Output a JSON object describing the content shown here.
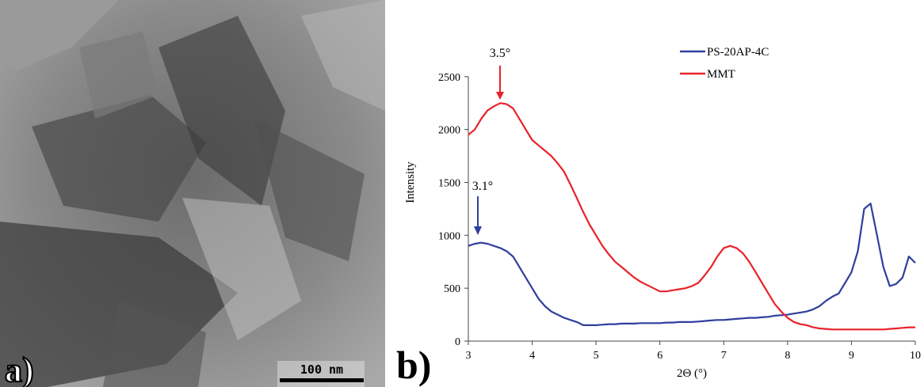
{
  "image_panel": {
    "label": "a)",
    "scale_bar": "100 nm"
  },
  "chart_data": {
    "type": "line",
    "panel_label": "b)",
    "x_label": "2Θ (°)",
    "y_label": "Intensity",
    "annotations": [
      "3.5°",
      "3.1°"
    ],
    "x": [
      3.0,
      3.1,
      3.2,
      3.3,
      3.4,
      3.5,
      3.6,
      3.7,
      3.8,
      3.9,
      4.0,
      4.1,
      4.2,
      4.3,
      4.4,
      4.5,
      4.6,
      4.7,
      4.8,
      4.9,
      5.0,
      5.1,
      5.2,
      5.3,
      5.4,
      5.5,
      5.6,
      5.7,
      5.8,
      5.9,
      6.0,
      6.1,
      6.2,
      6.3,
      6.4,
      6.5,
      6.6,
      6.7,
      6.8,
      6.9,
      7.0,
      7.1,
      7.2,
      7.3,
      7.4,
      7.5,
      7.6,
      7.7,
      7.8,
      7.9,
      8.0,
      8.1,
      8.2,
      8.3,
      8.4,
      8.5,
      8.6,
      8.7,
      8.8,
      8.9,
      9.0,
      9.1,
      9.2,
      9.3,
      9.4,
      9.5,
      9.6,
      9.7,
      9.8,
      9.9,
      10.0
    ],
    "series": [
      {
        "name": "PS-20AP-4C",
        "color": "#2e3f9e",
        "values": [
          900,
          920,
          930,
          920,
          900,
          880,
          850,
          800,
          700,
          600,
          500,
          400,
          330,
          280,
          250,
          220,
          200,
          180,
          150,
          150,
          150,
          155,
          160,
          160,
          165,
          165,
          165,
          170,
          170,
          170,
          170,
          175,
          175,
          180,
          180,
          180,
          185,
          190,
          195,
          200,
          200,
          205,
          210,
          215,
          220,
          220,
          225,
          230,
          240,
          245,
          250,
          260,
          270,
          280,
          300,
          330,
          380,
          420,
          450,
          550,
          650,
          850,
          1250,
          1300,
          1000,
          700,
          520,
          540,
          600,
          800,
          740
        ]
      },
      {
        "name": "MMT",
        "color": "#e8222a",
        "values": [
          1950,
          2000,
          2100,
          2180,
          2220,
          2250,
          2240,
          2200,
          2100,
          2000,
          1900,
          1850,
          1800,
          1750,
          1680,
          1600,
          1480,
          1350,
          1220,
          1100,
          1000,
          900,
          820,
          750,
          700,
          650,
          600,
          560,
          530,
          500,
          470,
          470,
          480,
          490,
          500,
          520,
          550,
          620,
          700,
          800,
          880,
          900,
          880,
          830,
          750,
          650,
          550,
          450,
          350,
          280,
          220,
          180,
          160,
          150,
          130,
          120,
          115,
          110,
          110,
          110,
          110,
          110,
          110,
          110,
          110,
          110,
          115,
          120,
          125,
          130,
          130
        ]
      }
    ],
    "xlim": [
      3,
      10
    ],
    "xticks": [
      3,
      4,
      5,
      6,
      7,
      8,
      9,
      10
    ],
    "ylim": [
      0,
      3000
    ],
    "yticks": [
      0,
      500,
      1000,
      1500,
      2000,
      2500
    ],
    "legend": "upper right"
  }
}
